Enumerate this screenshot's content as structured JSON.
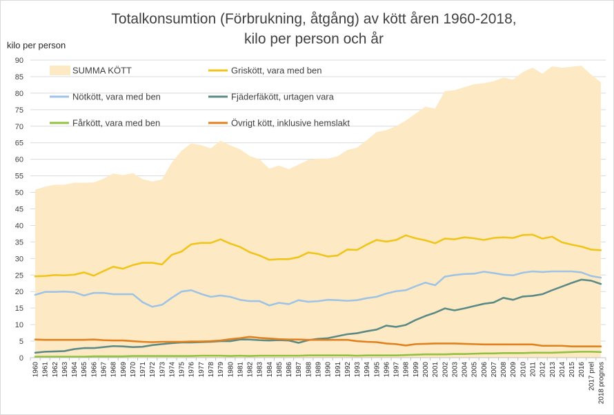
{
  "chart_data": {
    "type": "line",
    "title": "Totalkonsumtion (Förbrukning, åtgång) av kött åren 1960-2018,",
    "subtitle": "kilo per person och år",
    "ylabel": "kilo per person",
    "xlabel": "",
    "ylim": [
      0,
      90
    ],
    "yticks": [
      0,
      5,
      10,
      15,
      20,
      25,
      30,
      35,
      40,
      45,
      50,
      55,
      60,
      65,
      70,
      75,
      80,
      85,
      90
    ],
    "grid": true,
    "legend_position": "top",
    "categories": [
      "1960",
      "1961",
      "1962",
      "1963",
      "1964",
      "1965",
      "1966",
      "1967",
      "1968",
      "1969",
      "1970",
      "1971",
      "1972",
      "1973",
      "1974",
      "1975",
      "1976",
      "1977",
      "1978",
      "1979",
      "1980",
      "1981",
      "1982",
      "1983",
      "1984",
      "1985",
      "1986",
      "1987",
      "1988",
      "1989",
      "1990",
      "1991",
      "1992",
      "1993",
      "1994",
      "1995",
      "1996",
      "1997",
      "1998",
      "1999",
      "2000",
      "2001",
      "2002",
      "2003",
      "2004",
      "2005",
      "2006",
      "2007",
      "2008",
      "2009",
      "2010",
      "2011",
      "2012",
      "2013",
      "2014",
      "2015",
      "2016",
      "2017 prel",
      "2018 prognos"
    ],
    "series": [
      {
        "name": "SUMMA KÖTT",
        "style": "area",
        "color": "#fde9c3",
        "values": [
          50.8,
          51.7,
          52.3,
          52.3,
          52.9,
          52.9,
          53.0,
          54.1,
          55.7,
          55.2,
          55.8,
          54.0,
          53.3,
          53.9,
          59.0,
          62.6,
          64.8,
          64.3,
          63.3,
          65.6,
          64.2,
          63.0,
          61.0,
          60.0,
          57.2,
          58.1,
          57.0,
          58.4,
          59.8,
          60.2,
          60.2,
          60.9,
          62.8,
          63.5,
          65.8,
          68.2,
          68.8,
          70.0,
          71.7,
          73.8,
          75.9,
          75.3,
          80.6,
          80.9,
          81.8,
          82.7,
          83.0,
          83.6,
          84.7,
          84.1,
          86.4,
          87.7,
          85.9,
          88.1,
          87.7,
          88.0,
          88.3,
          85.6,
          83.3
        ]
      },
      {
        "name": "Griskött, vara med ben",
        "style": "line",
        "color": "#f0c51b",
        "values": [
          24.6,
          24.7,
          25.0,
          24.9,
          25.1,
          25.8,
          24.8,
          26.2,
          27.5,
          26.9,
          28.0,
          28.7,
          28.7,
          28.2,
          31.1,
          32.1,
          34.3,
          34.7,
          34.7,
          35.8,
          34.5,
          33.5,
          31.9,
          30.9,
          29.6,
          29.8,
          29.8,
          30.4,
          31.8,
          31.4,
          30.6,
          30.9,
          32.7,
          32.6,
          34.2,
          35.6,
          35.1,
          35.6,
          37.0,
          36.1,
          35.5,
          34.6,
          36.0,
          35.8,
          36.4,
          36.1,
          35.6,
          36.2,
          36.4,
          36.2,
          37.1,
          37.2,
          36.0,
          36.6,
          34.9,
          34.2,
          33.6,
          32.7,
          32.5
        ]
      },
      {
        "name": "Nötkött, vara med ben",
        "style": "line",
        "color": "#9fc3e4",
        "values": [
          19.0,
          19.9,
          19.9,
          20.0,
          19.8,
          18.8,
          19.6,
          19.6,
          19.2,
          19.2,
          19.2,
          16.8,
          15.4,
          16.0,
          18.1,
          20.0,
          20.4,
          19.3,
          18.4,
          18.8,
          18.4,
          17.5,
          17.1,
          17.1,
          15.8,
          16.6,
          16.2,
          17.4,
          16.9,
          17.1,
          17.5,
          17.4,
          17.2,
          17.4,
          18.0,
          18.4,
          19.4,
          20.1,
          20.4,
          21.6,
          22.7,
          21.9,
          24.5,
          25.0,
          25.3,
          25.4,
          26.0,
          25.6,
          25.1,
          24.9,
          25.7,
          26.1,
          25.9,
          26.1,
          26.1,
          26.1,
          25.8,
          24.7,
          24.2
        ]
      },
      {
        "name": "Fjäderfäkött, urtagen vara",
        "style": "line",
        "color": "#5b8a86",
        "values": [
          1.5,
          1.8,
          1.9,
          2.0,
          2.6,
          2.9,
          2.9,
          3.2,
          3.5,
          3.4,
          3.2,
          3.3,
          3.8,
          4.1,
          4.4,
          4.6,
          4.6,
          4.7,
          4.8,
          5.0,
          5.0,
          5.5,
          5.5,
          5.3,
          5.2,
          5.3,
          5.2,
          4.5,
          5.3,
          5.7,
          5.9,
          6.5,
          7.1,
          7.4,
          8.0,
          8.5,
          9.7,
          9.3,
          9.9,
          11.4,
          12.6,
          13.6,
          14.9,
          14.3,
          14.9,
          15.6,
          16.3,
          16.7,
          18.1,
          17.5,
          18.5,
          18.7,
          19.2,
          20.4,
          21.5,
          22.6,
          23.6,
          23.3,
          22.3
        ]
      },
      {
        "name": "Fårkött, vara med ben",
        "style": "line",
        "color": "#92c142",
        "values": [
          0.3,
          0.3,
          0.3,
          0.3,
          0.3,
          0.3,
          0.4,
          0.4,
          0.4,
          0.4,
          0.5,
          0.5,
          0.5,
          0.5,
          0.5,
          0.5,
          0.5,
          0.6,
          0.6,
          0.6,
          0.5,
          0.6,
          0.5,
          0.6,
          0.6,
          0.6,
          0.6,
          0.6,
          0.7,
          0.7,
          0.7,
          0.7,
          0.7,
          0.6,
          0.7,
          0.7,
          0.7,
          0.7,
          0.8,
          0.9,
          1.0,
          1.0,
          1.0,
          1.1,
          1.1,
          1.2,
          1.3,
          1.3,
          1.4,
          1.4,
          1.4,
          1.5,
          1.5,
          1.5,
          1.6,
          1.7,
          1.8,
          1.8,
          1.7
        ]
      },
      {
        "name": "Övrigt kött, inklusive hemslakt",
        "style": "line",
        "color": "#e0801f",
        "values": [
          5.5,
          5.4,
          5.4,
          5.4,
          5.4,
          5.4,
          5.5,
          5.3,
          5.2,
          5.2,
          5.0,
          4.8,
          4.7,
          4.8,
          4.8,
          4.8,
          4.9,
          4.9,
          5.0,
          5.2,
          5.6,
          5.9,
          6.3,
          6.0,
          5.8,
          5.6,
          5.5,
          5.5,
          5.4,
          5.4,
          5.4,
          5.4,
          5.4,
          5.0,
          4.8,
          4.7,
          4.3,
          4.1,
          3.7,
          4.1,
          4.2,
          4.3,
          4.3,
          4.3,
          4.2,
          4.1,
          4.0,
          4.0,
          4.0,
          4.0,
          4.0,
          4.0,
          3.6,
          3.6,
          3.6,
          3.4,
          3.4,
          3.4,
          3.4
        ]
      }
    ]
  }
}
